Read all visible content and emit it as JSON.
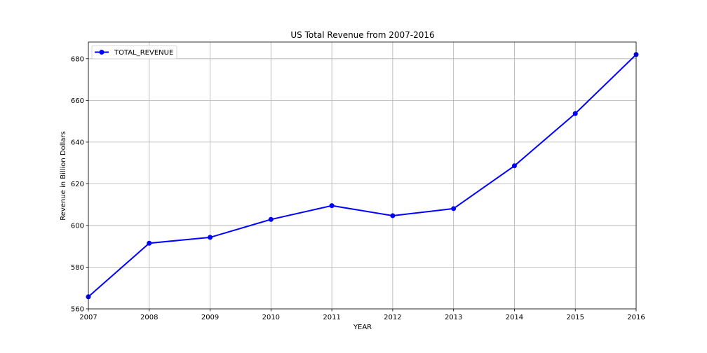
{
  "chart_data": {
    "type": "line",
    "title": "US Total Revenue from 2007-2016",
    "xlabel": "YEAR",
    "ylabel": "Revenue in Billion Dollars",
    "x": [
      2007,
      2008,
      2009,
      2010,
      2011,
      2012,
      2013,
      2014,
      2015,
      2016
    ],
    "xticks": [
      "2007",
      "2008",
      "2009",
      "2010",
      "2011",
      "2012",
      "2013",
      "2014",
      "2015",
      "2016"
    ],
    "yticks": [
      "560",
      "580",
      "600",
      "620",
      "640",
      "660",
      "680"
    ],
    "xlim": [
      2007,
      2016
    ],
    "ylim": [
      560,
      688
    ],
    "grid": true,
    "legend_position": "top-left",
    "series": [
      {
        "name": "TOTAL_REVENUE",
        "color": "#0000ff",
        "marker": "circle",
        "values": [
          565.8,
          591.5,
          594.3,
          602.9,
          609.5,
          604.7,
          608.1,
          628.6,
          653.7,
          682.0
        ]
      }
    ]
  }
}
